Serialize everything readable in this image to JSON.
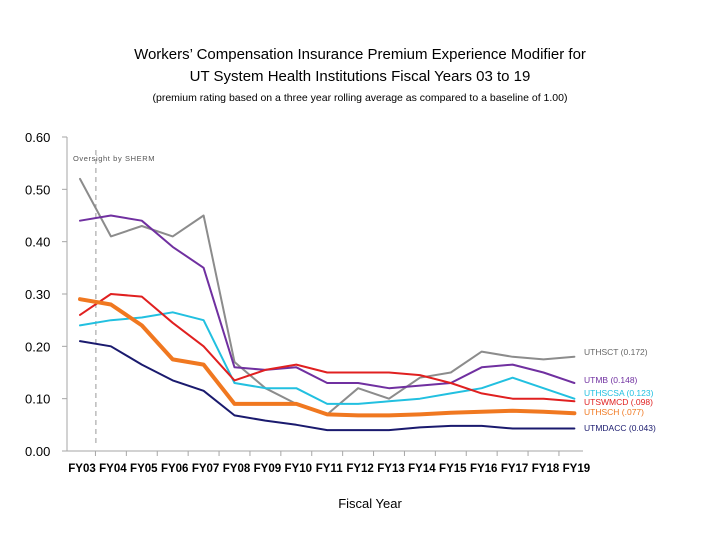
{
  "title_line1": "Workers’ Compensation Insurance Premium Experience Modifier for",
  "title_line2": "UT System Health Institutions Fiscal Years 03 to 19",
  "subtitle": "(premium rating based on a three year rolling average as compared to a baseline of 1.00)",
  "chart_data": {
    "type": "line",
    "title": "Workers’ Compensation Insurance Premium Experience Modifier for UT System Health Institutions Fiscal Years 03 to 19",
    "subtitle": "(premium rating based on a three year rolling average as compared to a baseline of 1.00)",
    "xlabel": "Fiscal Year",
    "ylabel": "",
    "ylim": [
      0,
      0.6
    ],
    "yticks": [
      "0.00",
      "0.10",
      "0.20",
      "0.30",
      "0.40",
      "0.50",
      "0.60"
    ],
    "grid": false,
    "categories": [
      "FY03",
      "FY04",
      "FY05",
      "FY06",
      "FY07",
      "FY08",
      "FY09",
      "FY10",
      "FY11",
      "FY12",
      "FY13",
      "FY14",
      "FY15",
      "FY16",
      "FY17",
      "FY18",
      "FY19"
    ],
    "annotation": {
      "text": "Oversight by SHERM",
      "x": "FY04"
    },
    "series": [
      {
        "name": "UTHSCT (0.172)",
        "color": "#8c8c8c",
        "width": 2,
        "values": [
          0.52,
          0.41,
          0.43,
          0.41,
          0.45,
          0.17,
          0.12,
          0.09,
          0.07,
          0.12,
          0.1,
          0.14,
          0.15,
          0.19,
          0.18,
          0.175,
          0.18
        ]
      },
      {
        "name": "UTMB (0.148)",
        "color": "#7030a0",
        "width": 2,
        "values": [
          0.44,
          0.45,
          0.44,
          0.39,
          0.35,
          0.16,
          0.155,
          0.16,
          0.13,
          0.13,
          0.12,
          0.125,
          0.13,
          0.16,
          0.165,
          0.15,
          0.13
        ]
      },
      {
        "name": "UTHSCSA (0.123)",
        "color": "#22c0e0",
        "width": 2,
        "values": [
          0.24,
          0.25,
          0.255,
          0.265,
          0.25,
          0.13,
          0.12,
          0.12,
          0.09,
          0.09,
          0.095,
          0.1,
          0.11,
          0.12,
          0.14,
          0.12,
          0.1
        ]
      },
      {
        "name": "UTSWMCD (.098)",
        "color": "#e02020",
        "width": 2,
        "values": [
          0.26,
          0.3,
          0.295,
          0.245,
          0.2,
          0.135,
          0.155,
          0.165,
          0.15,
          0.15,
          0.15,
          0.145,
          0.13,
          0.11,
          0.1,
          0.1,
          0.095
        ]
      },
      {
        "name": "UTHSCH (.077)",
        "color": "#f07820",
        "width": 4,
        "values": [
          0.29,
          0.28,
          0.24,
          0.175,
          0.165,
          0.09,
          0.09,
          0.09,
          0.07,
          0.068,
          0.068,
          0.07,
          0.073,
          0.075,
          0.077,
          0.075,
          0.072
        ]
      },
      {
        "name": "UTMDACC (0.043)",
        "color": "#1a1a6e",
        "width": 2,
        "values": [
          0.21,
          0.2,
          0.165,
          0.135,
          0.115,
          0.068,
          0.058,
          0.05,
          0.04,
          0.04,
          0.04,
          0.045,
          0.048,
          0.048,
          0.043,
          0.043,
          0.043
        ]
      }
    ]
  }
}
